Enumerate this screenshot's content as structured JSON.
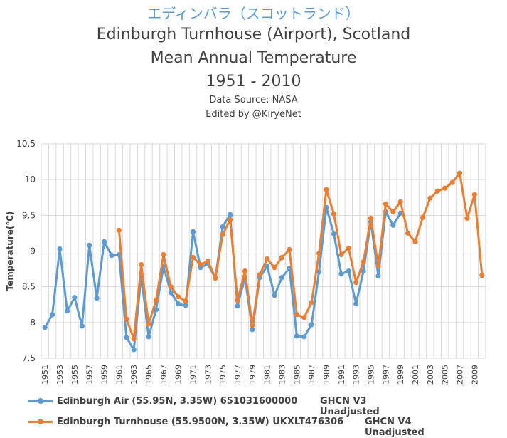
{
  "colors": {
    "series1": "#5b9bd5",
    "series2": "#ed7d31",
    "grid": "#d9d9d9",
    "text": "#404040"
  },
  "titles": {
    "jp": "エディンバラ（スコットランド）",
    "line1": "Edinburgh Turnhouse (Airport), Scotland",
    "line2": "Mean Annual Temperature",
    "line3": "1951 - 2010",
    "source": "Data Source: NASA",
    "edited": "Edited by @KiryeNet"
  },
  "legend": {
    "s1_label": "Edinburgh Air (55.95N, 3.35W) 651031600000",
    "s1_source": "GHCN V3 Unadjusted",
    "s2_label": "Edinburgh Turnhouse (55.9500N, 3.35W) UKXLT476306",
    "s2_source": "GHCN V4 Unadjusted"
  },
  "chart_data": {
    "type": "line",
    "ylabel": "Temperature(℃)",
    "ylim": [
      7.5,
      10.5
    ],
    "yticks": [
      "7.5",
      "8",
      "8.5",
      "9",
      "9.5",
      "10",
      "10.5"
    ],
    "xlim": [
      1951,
      2010
    ],
    "xticks": [
      "1951",
      "1953",
      "1955",
      "1957",
      "1959",
      "1961",
      "1963",
      "1965",
      "1967",
      "1969",
      "1971",
      "1973",
      "1975",
      "1977",
      "1979",
      "1981",
      "1983",
      "1985",
      "1987",
      "1989",
      "1991",
      "1993",
      "1995",
      "1997",
      "1999",
      "2001",
      "2003",
      "2005",
      "2007",
      "2009"
    ],
    "grid": true,
    "legend_position": "bottom",
    "series": [
      {
        "name": "Edinburgh Air (55.95N, 3.35W) 651031600000",
        "x": [
          1951,
          1952,
          1953,
          1954,
          1955,
          1956,
          1957,
          1958,
          1959,
          1960,
          1961,
          1962,
          1963,
          1964,
          1965,
          1966,
          1967,
          1968,
          1969,
          1970,
          1971,
          1972,
          1973,
          1974,
          1975,
          1976,
          1977,
          1978,
          1979,
          1980,
          1981,
          1982,
          1983,
          1984,
          1985,
          1986,
          1987,
          1988,
          1989,
          1990,
          1991,
          1992,
          1993,
          1994,
          1995,
          1996,
          1997,
          1998,
          1999
        ],
        "y": [
          7.93,
          8.11,
          9.03,
          8.16,
          8.35,
          7.95,
          9.08,
          8.34,
          9.13,
          8.94,
          8.95,
          7.79,
          7.62,
          8.65,
          7.8,
          8.18,
          8.78,
          8.42,
          8.26,
          8.24,
          9.27,
          8.77,
          8.82,
          8.62,
          9.34,
          9.51,
          8.23,
          8.63,
          7.9,
          8.63,
          8.79,
          8.38,
          8.63,
          8.76,
          7.81,
          7.8,
          7.97,
          8.71,
          9.61,
          9.24,
          8.68,
          8.72,
          8.26,
          8.72,
          9.41,
          8.65,
          9.55,
          9.36,
          9.53
        ]
      },
      {
        "name": "Edinburgh Turnhouse (55.9500N, 3.35W) UKXLT476306",
        "x": [
          1961,
          1962,
          1963,
          1964,
          1965,
          1966,
          1967,
          1968,
          1969,
          1970,
          1971,
          1972,
          1973,
          1974,
          1975,
          1976,
          1977,
          1978,
          1979,
          1980,
          1981,
          1982,
          1983,
          1984,
          1985,
          1986,
          1987,
          1988,
          1989,
          1990,
          1991,
          1992,
          1993,
          1994,
          1995,
          1996,
          1997,
          1998,
          1999,
          2000,
          2001,
          2002,
          2003,
          2004,
          2005,
          2006,
          2007,
          2008,
          2009,
          2010
        ],
        "y": [
          9.29,
          8.05,
          7.77,
          8.81,
          7.98,
          8.31,
          8.95,
          8.5,
          8.36,
          8.3,
          8.91,
          8.81,
          8.86,
          8.62,
          9.23,
          9.44,
          8.31,
          8.72,
          7.96,
          8.67,
          8.89,
          8.77,
          8.91,
          9.02,
          8.11,
          8.07,
          8.28,
          8.97,
          9.86,
          9.52,
          8.95,
          9.04,
          8.56,
          8.85,
          9.46,
          8.79,
          9.66,
          9.55,
          9.69,
          9.25,
          9.13,
          9.47,
          9.74,
          9.84,
          9.88,
          9.96,
          10.09,
          9.46,
          9.79,
          8.66
        ]
      }
    ]
  }
}
